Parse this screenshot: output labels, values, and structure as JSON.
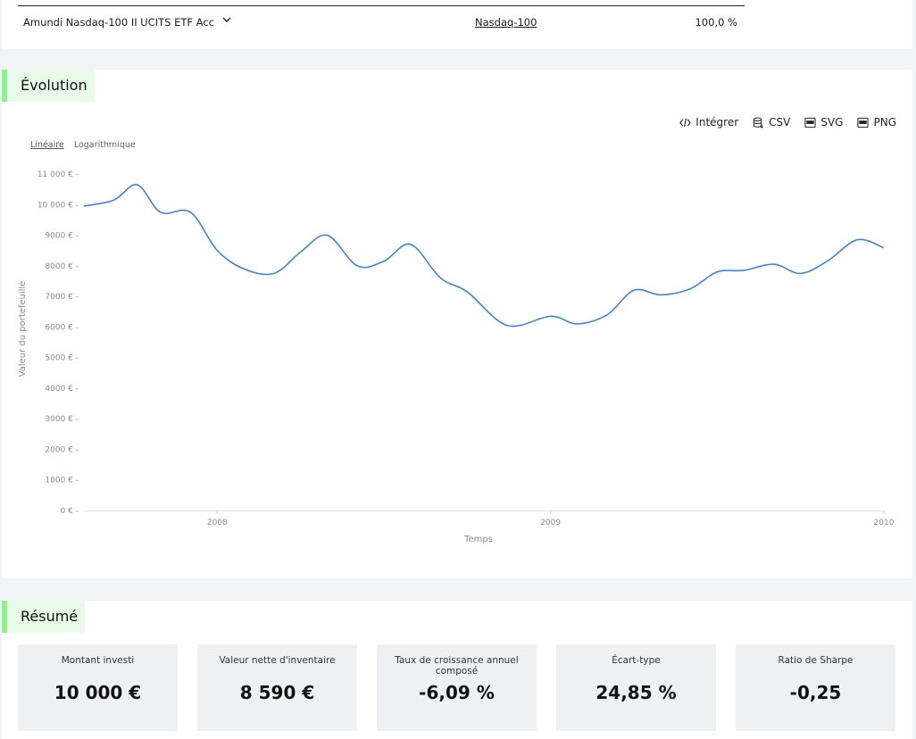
{
  "holding": {
    "name": "Amundi Nasdaq-100 II UCITS ETF Acc",
    "index": "Nasdaq-100",
    "weight": "100,0 %"
  },
  "evolution": {
    "title": "Évolution",
    "tools": {
      "embed": "Intégrer",
      "csv": "CSV",
      "svg": "SVG",
      "png": "PNG"
    },
    "scale": {
      "linear": "Linéaire",
      "log": "Logarithmique"
    }
  },
  "chart_data": {
    "type": "line",
    "title": "",
    "xlabel": "Temps",
    "ylabel": "Valeur du portefeuille",
    "ylim": [
      0,
      11000
    ],
    "xlim": [
      2007.6,
      2010.0
    ],
    "y_ticks": [
      "0 €",
      "1000 €",
      "2000 €",
      "3000 €",
      "4000 €",
      "5000 €",
      "6000 €",
      "7000 €",
      "8000 €",
      "9000 €",
      "10 000 €",
      "11 000 €"
    ],
    "x_ticks": [
      "2008",
      "2009",
      "2010"
    ],
    "grid": false,
    "color": "#3c82e6",
    "series": [
      {
        "x": [
          2007.6,
          2007.69,
          2007.76,
          2007.83,
          2007.92,
          2008.0,
          2008.08,
          2008.17,
          2008.25,
          2008.33,
          2008.42,
          2008.5,
          2008.58,
          2008.67,
          2008.75,
          2008.87,
          2009.0,
          2009.08,
          2009.17,
          2009.25,
          2009.33,
          2009.42,
          2009.5,
          2009.58,
          2009.67,
          2009.75,
          2009.83,
          2009.92,
          2010.0
        ],
        "y": [
          9950,
          10150,
          10650,
          9750,
          9750,
          8500,
          7900,
          7750,
          8450,
          9000,
          8000,
          8150,
          8700,
          7600,
          7150,
          6050,
          6350,
          6100,
          6400,
          7200,
          7050,
          7250,
          7800,
          7850,
          8050,
          7750,
          8150,
          8850,
          8590
        ]
      }
    ]
  },
  "resume": {
    "title": "Résumé",
    "stats": [
      {
        "label": "Montant investi",
        "value": "10 000 €"
      },
      {
        "label": "Valeur nette d'inventaire",
        "value": "8 590 €"
      },
      {
        "label": "Taux de croissance annuel composé",
        "value": "-6,09 %"
      },
      {
        "label": "Écart-type",
        "value": "24,85 %"
      },
      {
        "label": "Ratio de Sharpe",
        "value": "-0,25"
      }
    ]
  }
}
